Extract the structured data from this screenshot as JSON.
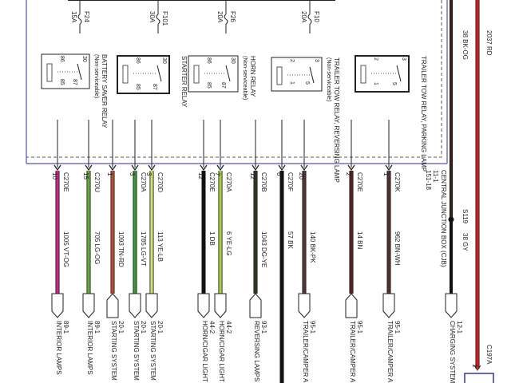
{
  "fuses": [
    {
      "id": "F24",
      "rating": "15A"
    },
    {
      "id": "F101",
      "rating": "30A"
    },
    {
      "id": "F26",
      "rating": "20A"
    },
    {
      "id": "F10",
      "rating": "20A"
    }
  ],
  "relays": [
    {
      "name": "BATTERY SAVER RELAY",
      "note": "(Non-serviceable)",
      "pins": [
        "86",
        "85",
        "30",
        "87"
      ]
    },
    {
      "name": "STARTER RELAY",
      "note": "",
      "pins": [
        "86",
        "85",
        "30",
        "87"
      ]
    },
    {
      "name": "HORN RELAY",
      "note": "(Non-serviceable)",
      "pins": [
        "86",
        "85",
        "30",
        "87"
      ]
    },
    {
      "name": "TRAILER TOW RELAY, REVERSING LAMP",
      "note": "(Non-serviceable)",
      "pins": [
        "2",
        "1",
        "3",
        "5"
      ]
    },
    {
      "name": "TRAILER TOW RELAY, PARKING LAMP",
      "note": "",
      "pins": [
        "2",
        "1",
        "3",
        "5"
      ]
    }
  ],
  "junction_box": {
    "label": "CENTRAL JUNCTION BOX (CJB)",
    "ref1": "11-1",
    "ref2": "151-18"
  },
  "wires": [
    {
      "connector": "C270E",
      "pin": "10",
      "circuit": "1005",
      "color_code": "VT-OG",
      "color": "#c8288c",
      "dest_ref": "89-1",
      "dest": "INTERIOR LAMPS",
      "shape": "down"
    },
    {
      "connector": "C270U",
      "pin": "15",
      "circuit": "705",
      "color_code": "LG-OG",
      "color": "#6aaa3a",
      "dest_ref": "89-1",
      "dest": "INTERIOR LAMPS",
      "shape": "down"
    },
    {
      "connector": "",
      "pin": "1",
      "circuit": "1093",
      "color_code": "TN-RD",
      "color": "#b85030",
      "dest_ref": "20-1",
      "dest": "STARTING SYSTEM",
      "shape": "up"
    },
    {
      "connector": "C270A",
      "pin": "3",
      "circuit": "1785",
      "color_code": "LG-VT",
      "color": "#3a9a3a",
      "dest_ref": "20-1",
      "dest": "STARTING SYSTEM",
      "shape": "down"
    },
    {
      "connector": "C270D",
      "pin": "3",
      "circuit": "113",
      "color_code": "YE-LB",
      "color": "#c8e070",
      "dest_ref": "20-1",
      "dest": "STARTING SYSTEM",
      "shape": "down"
    },
    {
      "connector": "C270E",
      "pin": "12",
      "circuit": "1",
      "color_code": "DB",
      "color": "#111111",
      "dest_ref": "44-2",
      "dest": "HORN/CIGAR LIGHT",
      "shape": "down"
    },
    {
      "connector": "C270A",
      "pin": "7",
      "circuit": "6",
      "color_code": "YE-LG",
      "color": "#a8d040",
      "dest_ref": "44-2",
      "dest": "HORN/CIGAR LIGHT",
      "shape": "down"
    },
    {
      "connector": "C270B",
      "pin": "12",
      "circuit": "1043",
      "color_code": "DG-YE",
      "color": "#2a3a20",
      "dest_ref": "93-1",
      "dest": "REVERSING LAMPS",
      "shape": "up"
    },
    {
      "connector": "C270F",
      "pin": "6",
      "circuit": "57",
      "color_code": "BK",
      "color": "#111111",
      "dest_ref": "",
      "dest": "",
      "shape": "none"
    },
    {
      "connector": "",
      "pin": "20",
      "circuit": "140",
      "color_code": "BK-PK",
      "color": "#553838",
      "dest_ref": "95-1",
      "dest": "TRAILER/CAMPER A",
      "shape": "down"
    },
    {
      "connector": "C270E",
      "pin": "2",
      "circuit": "14",
      "color_code": "BN",
      "color": "#552222",
      "dest_ref": "95-1",
      "dest": "TRAILER/CAMPER A",
      "shape": "up"
    },
    {
      "connector": "C270K",
      "pin": "1",
      "circuit": "962",
      "color_code": "BN-WH",
      "color": "#553030",
      "dest_ref": "95-1",
      "dest": "TRAILER/CAMPER A",
      "shape": "down"
    }
  ],
  "feed_wire": {
    "upper_circuit": "38",
    "upper_code": "BK-OG",
    "splice": "S119",
    "lower_circuit": "38",
    "lower_code": "GY",
    "dest_ref": "12-1",
    "dest": "CHARGING SYSTEM",
    "color": "#3a2418"
  },
  "red_wire": {
    "circuit": "2037",
    "code": "RD",
    "connector": "C197A",
    "pin": "1",
    "color": "#d42020"
  },
  "colors": {
    "module_border": "#7070c0",
    "line": "#222222"
  }
}
